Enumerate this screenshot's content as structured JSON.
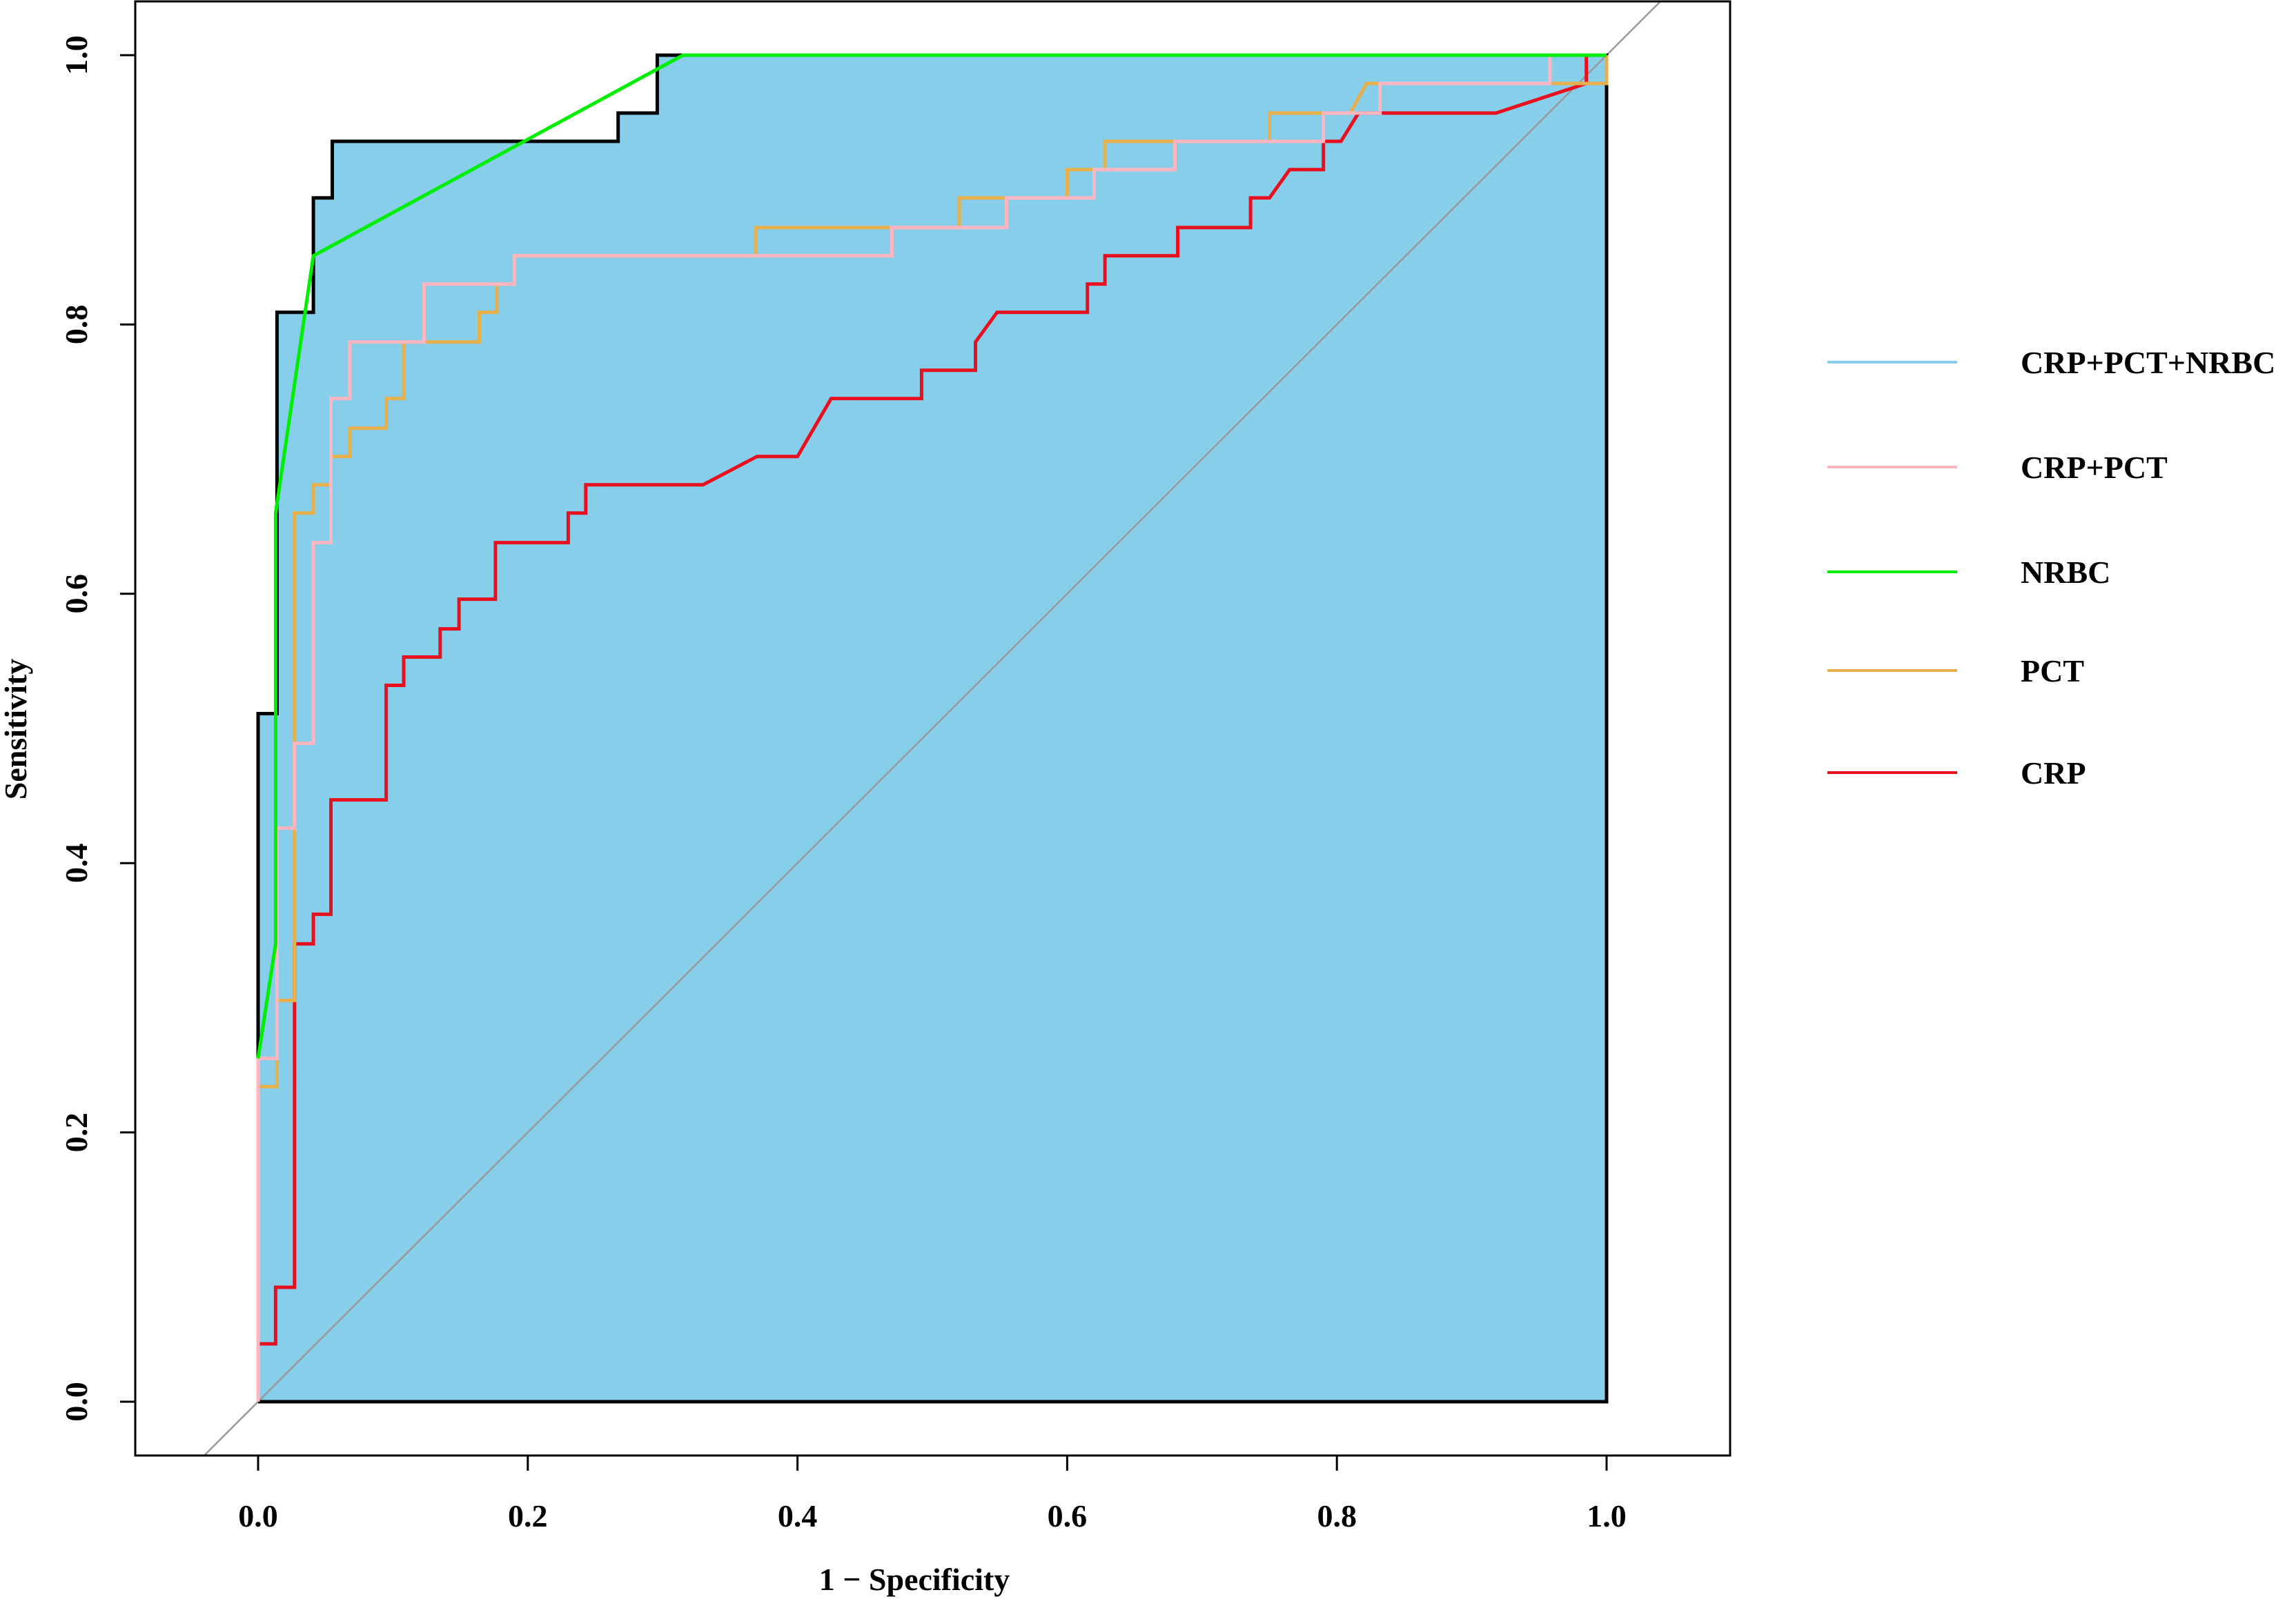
{
  "chart_data": {
    "type": "line",
    "xlabel": "1 − Specificity",
    "ylabel": "Sensitivity",
    "xlim": [
      -0.09,
      1.09
    ],
    "ylim": [
      -0.04,
      1.04
    ],
    "x_ticks": [
      "0.0",
      "0.2",
      "0.4",
      "0.6",
      "0.8",
      "1.0"
    ],
    "y_ticks": [
      "0.0",
      "0.2",
      "0.4",
      "0.6",
      "0.8",
      "1.0"
    ],
    "grid": false,
    "legend_position": "right",
    "area_fill_color": "#87CEEB",
    "diagonal_color": "#999999",
    "legend": [
      {
        "label": "CRP+PCT+NRBC",
        "color": "#87CEEB"
      },
      {
        "label": "CRP+PCT",
        "color": "#FFB6C1"
      },
      {
        "label": "NRBC",
        "color": "#00EE00"
      },
      {
        "label": "PCT",
        "color": "#E8B04A"
      },
      {
        "label": "CRP",
        "color": "#E8101E"
      }
    ],
    "series": [
      {
        "name": "CRP+PCT+NRBC",
        "color": "#000000",
        "points": [
          [
            0,
            0
          ],
          [
            0,
            0.511
          ],
          [
            0.014,
            0.511
          ],
          [
            0.014,
            0.809
          ],
          [
            0.041,
            0.809
          ],
          [
            0.041,
            0.894
          ],
          [
            0.055,
            0.894
          ],
          [
            0.055,
            0.936
          ],
          [
            0.267,
            0.936
          ],
          [
            0.267,
            0.957
          ],
          [
            0.296,
            0.957
          ],
          [
            0.296,
            1.0
          ],
          [
            1.0,
            1.0
          ],
          [
            1.0,
            0
          ],
          [
            0,
            0
          ]
        ]
      },
      {
        "name": "CRP",
        "color": "#E8101E",
        "points": [
          [
            0,
            0
          ],
          [
            0,
            0.043
          ],
          [
            0.013,
            0.043
          ],
          [
            0.013,
            0.085
          ],
          [
            0.027,
            0.085
          ],
          [
            0.027,
            0.34
          ],
          [
            0.041,
            0.34
          ],
          [
            0.041,
            0.362
          ],
          [
            0.054,
            0.362
          ],
          [
            0.054,
            0.447
          ],
          [
            0.095,
            0.447
          ],
          [
            0.095,
            0.532
          ],
          [
            0.108,
            0.532
          ],
          [
            0.108,
            0.553
          ],
          [
            0.135,
            0.553
          ],
          [
            0.135,
            0.574
          ],
          [
            0.149,
            0.574
          ],
          [
            0.149,
            0.596
          ],
          [
            0.176,
            0.596
          ],
          [
            0.176,
            0.638
          ],
          [
            0.23,
            0.638
          ],
          [
            0.23,
            0.66
          ],
          [
            0.243,
            0.66
          ],
          [
            0.243,
            0.681
          ],
          [
            0.33,
            0.681
          ],
          [
            0.37,
            0.702
          ],
          [
            0.4,
            0.702
          ],
          [
            0.425,
            0.745
          ],
          [
            0.492,
            0.745
          ],
          [
            0.492,
            0.766
          ],
          [
            0.532,
            0.766
          ],
          [
            0.532,
            0.787
          ],
          [
            0.548,
            0.809
          ],
          [
            0.615,
            0.809
          ],
          [
            0.615,
            0.83
          ],
          [
            0.628,
            0.83
          ],
          [
            0.628,
            0.851
          ],
          [
            0.682,
            0.851
          ],
          [
            0.682,
            0.872
          ],
          [
            0.736,
            0.872
          ],
          [
            0.736,
            0.894
          ],
          [
            0.75,
            0.894
          ],
          [
            0.765,
            0.915
          ],
          [
            0.79,
            0.915
          ],
          [
            0.79,
            0.936
          ],
          [
            0.803,
            0.936
          ],
          [
            0.816,
            0.957
          ],
          [
            0.918,
            0.957
          ],
          [
            0.985,
            0.979
          ],
          [
            0.985,
            1.0
          ]
        ]
      },
      {
        "name": "PCT",
        "color": "#E8B04A",
        "points": [
          [
            0,
            0
          ],
          [
            0,
            0.234
          ],
          [
            0.014,
            0.234
          ],
          [
            0.014,
            0.298
          ],
          [
            0.027,
            0.298
          ],
          [
            0.027,
            0.66
          ],
          [
            0.041,
            0.66
          ],
          [
            0.041,
            0.681
          ],
          [
            0.054,
            0.681
          ],
          [
            0.054,
            0.702
          ],
          [
            0.068,
            0.702
          ],
          [
            0.068,
            0.723
          ],
          [
            0.095,
            0.723
          ],
          [
            0.095,
            0.745
          ],
          [
            0.108,
            0.745
          ],
          [
            0.108,
            0.787
          ],
          [
            0.164,
            0.787
          ],
          [
            0.164,
            0.809
          ],
          [
            0.177,
            0.809
          ],
          [
            0.177,
            0.83
          ],
          [
            0.19,
            0.83
          ],
          [
            0.19,
            0.851
          ],
          [
            0.369,
            0.851
          ],
          [
            0.369,
            0.872
          ],
          [
            0.52,
            0.872
          ],
          [
            0.52,
            0.894
          ],
          [
            0.6,
            0.894
          ],
          [
            0.6,
            0.915
          ],
          [
            0.628,
            0.915
          ],
          [
            0.628,
            0.936
          ],
          [
            0.75,
            0.936
          ],
          [
            0.75,
            0.957
          ],
          [
            0.81,
            0.957
          ],
          [
            0.822,
            0.979
          ],
          [
            1.0,
            0.979
          ],
          [
            1.0,
            1.0
          ]
        ]
      },
      {
        "name": "CRP+PCT",
        "color": "#FFB6C1",
        "points": [
          [
            0,
            0
          ],
          [
            0,
            0.255
          ],
          [
            0.014,
            0.255
          ],
          [
            0.014,
            0.426
          ],
          [
            0.027,
            0.426
          ],
          [
            0.027,
            0.489
          ],
          [
            0.041,
            0.489
          ],
          [
            0.041,
            0.638
          ],
          [
            0.054,
            0.638
          ],
          [
            0.054,
            0.745
          ],
          [
            0.068,
            0.745
          ],
          [
            0.068,
            0.787
          ],
          [
            0.123,
            0.787
          ],
          [
            0.123,
            0.83
          ],
          [
            0.19,
            0.83
          ],
          [
            0.19,
            0.851
          ],
          [
            0.47,
            0.851
          ],
          [
            0.47,
            0.872
          ],
          [
            0.555,
            0.872
          ],
          [
            0.555,
            0.894
          ],
          [
            0.62,
            0.894
          ],
          [
            0.62,
            0.915
          ],
          [
            0.68,
            0.915
          ],
          [
            0.68,
            0.936
          ],
          [
            0.79,
            0.936
          ],
          [
            0.79,
            0.957
          ],
          [
            0.832,
            0.957
          ],
          [
            0.832,
            0.979
          ],
          [
            0.958,
            0.979
          ],
          [
            0.958,
            1.0
          ],
          [
            1.0,
            1.0
          ]
        ]
      },
      {
        "name": "NRBC",
        "color": "#00EE00",
        "points": [
          [
            0,
            0.255
          ],
          [
            0.013,
            0.34
          ],
          [
            0.013,
            0.66
          ],
          [
            0.041,
            0.851
          ],
          [
            0.315,
            1.0
          ],
          [
            1.0,
            1.0
          ]
        ]
      }
    ]
  }
}
